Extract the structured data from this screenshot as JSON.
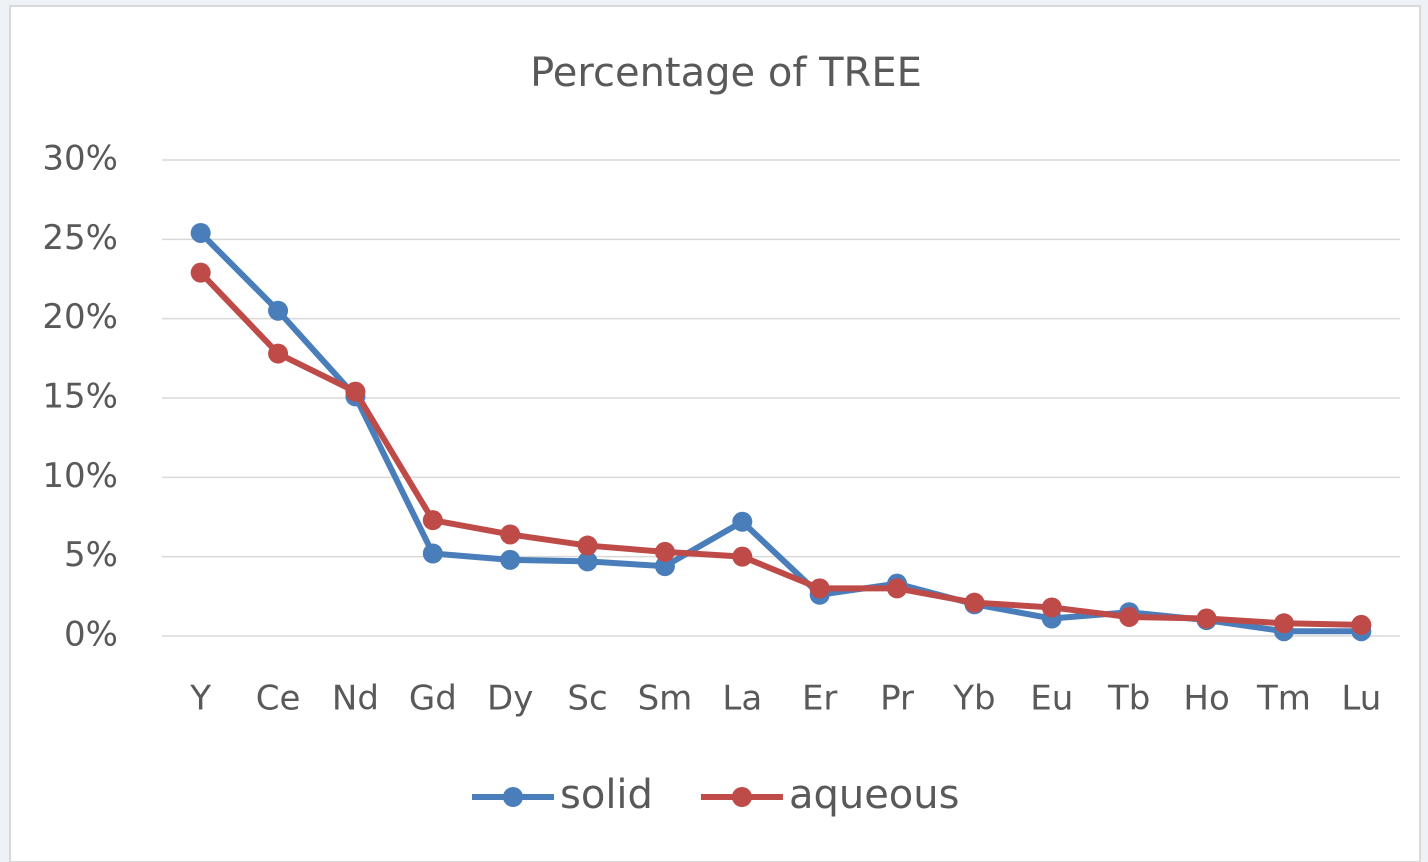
{
  "chart_data": {
    "type": "line",
    "title": "Percentage of TREE",
    "categories": [
      "Y",
      "Ce",
      "Nd",
      "Gd",
      "Dy",
      "Sc",
      "Sm",
      "La",
      "Er",
      "Pr",
      "Yb",
      "Eu",
      "Tb",
      "Ho",
      "Tm",
      "Lu"
    ],
    "series": [
      {
        "name": "solid",
        "color": "#4a7ebb",
        "values": [
          25.4,
          20.5,
          15.1,
          5.2,
          4.8,
          4.7,
          4.4,
          7.2,
          2.6,
          3.3,
          2.0,
          1.1,
          1.5,
          1.0,
          0.3,
          0.3
        ]
      },
      {
        "name": "aqueous",
        "color": "#be4b48",
        "values": [
          22.9,
          17.8,
          15.4,
          7.3,
          6.4,
          5.7,
          5.3,
          5.0,
          3.0,
          3.0,
          2.1,
          1.8,
          1.2,
          1.1,
          0.8,
          0.7
        ]
      }
    ],
    "ylim": [
      0,
      30
    ],
    "yticks": [
      {
        "value": 0,
        "label": "0%"
      },
      {
        "value": 5,
        "label": "5%"
      },
      {
        "value": 10,
        "label": "10%"
      },
      {
        "value": 15,
        "label": "15%"
      },
      {
        "value": 20,
        "label": "20%"
      },
      {
        "value": 25,
        "label": "25%"
      },
      {
        "value": 30,
        "label": "30%"
      }
    ],
    "grid": true,
    "legend": "bottom"
  }
}
